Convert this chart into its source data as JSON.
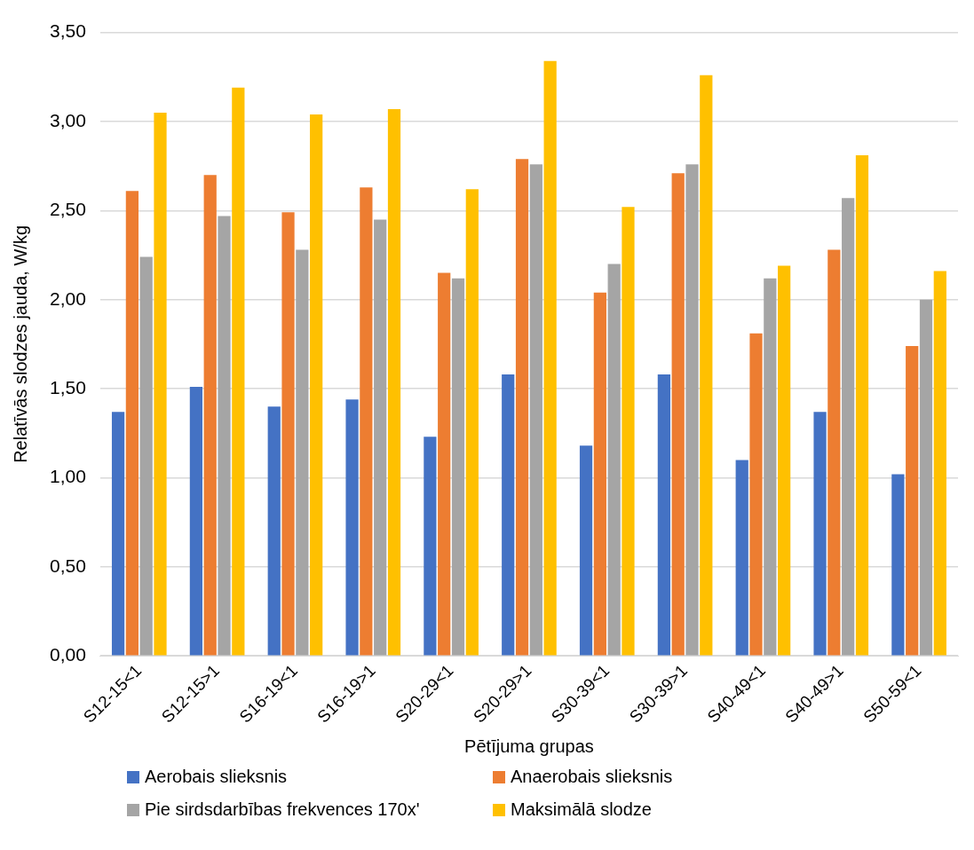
{
  "chart_data": {
    "type": "bar",
    "xlabel": "Pētījuma grupas",
    "ylabel": "Relatīvās slodzes jauda, W/kg",
    "categories": [
      "S12-15<1",
      "S12-15>1",
      "S16-19<1",
      "S16-19>1",
      "S20-29<1",
      "S20-29>1",
      "S30-39<1",
      "S30-39>1",
      "S40-49<1",
      "S40-49>1",
      "S50-59<1"
    ],
    "series": [
      {
        "name": "Aerobais slieksnis",
        "color": "#4472c4",
        "values": [
          1.37,
          1.51,
          1.4,
          1.44,
          1.23,
          1.58,
          1.18,
          1.58,
          1.1,
          1.37,
          1.02
        ]
      },
      {
        "name": "Anaerobais slieksnis",
        "color": "#ed7d31",
        "values": [
          2.61,
          2.7,
          2.49,
          2.63,
          2.15,
          2.79,
          2.04,
          2.71,
          1.81,
          2.28,
          1.74
        ]
      },
      {
        "name": "Pie sirdsdarbības frekvences 170x'",
        "color": "#a5a5a5",
        "values": [
          2.24,
          2.47,
          2.28,
          2.45,
          2.12,
          2.76,
          2.2,
          2.76,
          2.12,
          2.57,
          2.0
        ]
      },
      {
        "name": "Maksimālā slodze",
        "color": "#ffc000",
        "values": [
          3.05,
          3.19,
          3.04,
          3.07,
          2.62,
          3.34,
          2.52,
          3.26,
          2.19,
          2.81,
          2.16
        ]
      }
    ],
    "ylim": [
      0,
      3.5
    ],
    "yticks": [
      {
        "value": 0,
        "label": "0,00"
      },
      {
        "value": 0.5,
        "label": "0,50"
      },
      {
        "value": 1,
        "label": "1,00"
      },
      {
        "value": 1.5,
        "label": "1,50"
      },
      {
        "value": 2,
        "label": "2,00"
      },
      {
        "value": 2.5,
        "label": "2,50"
      },
      {
        "value": 3,
        "label": "3,00"
      },
      {
        "value": 3.5,
        "label": "3,50"
      }
    ],
    "grid": "y",
    "legend": "bottom"
  }
}
